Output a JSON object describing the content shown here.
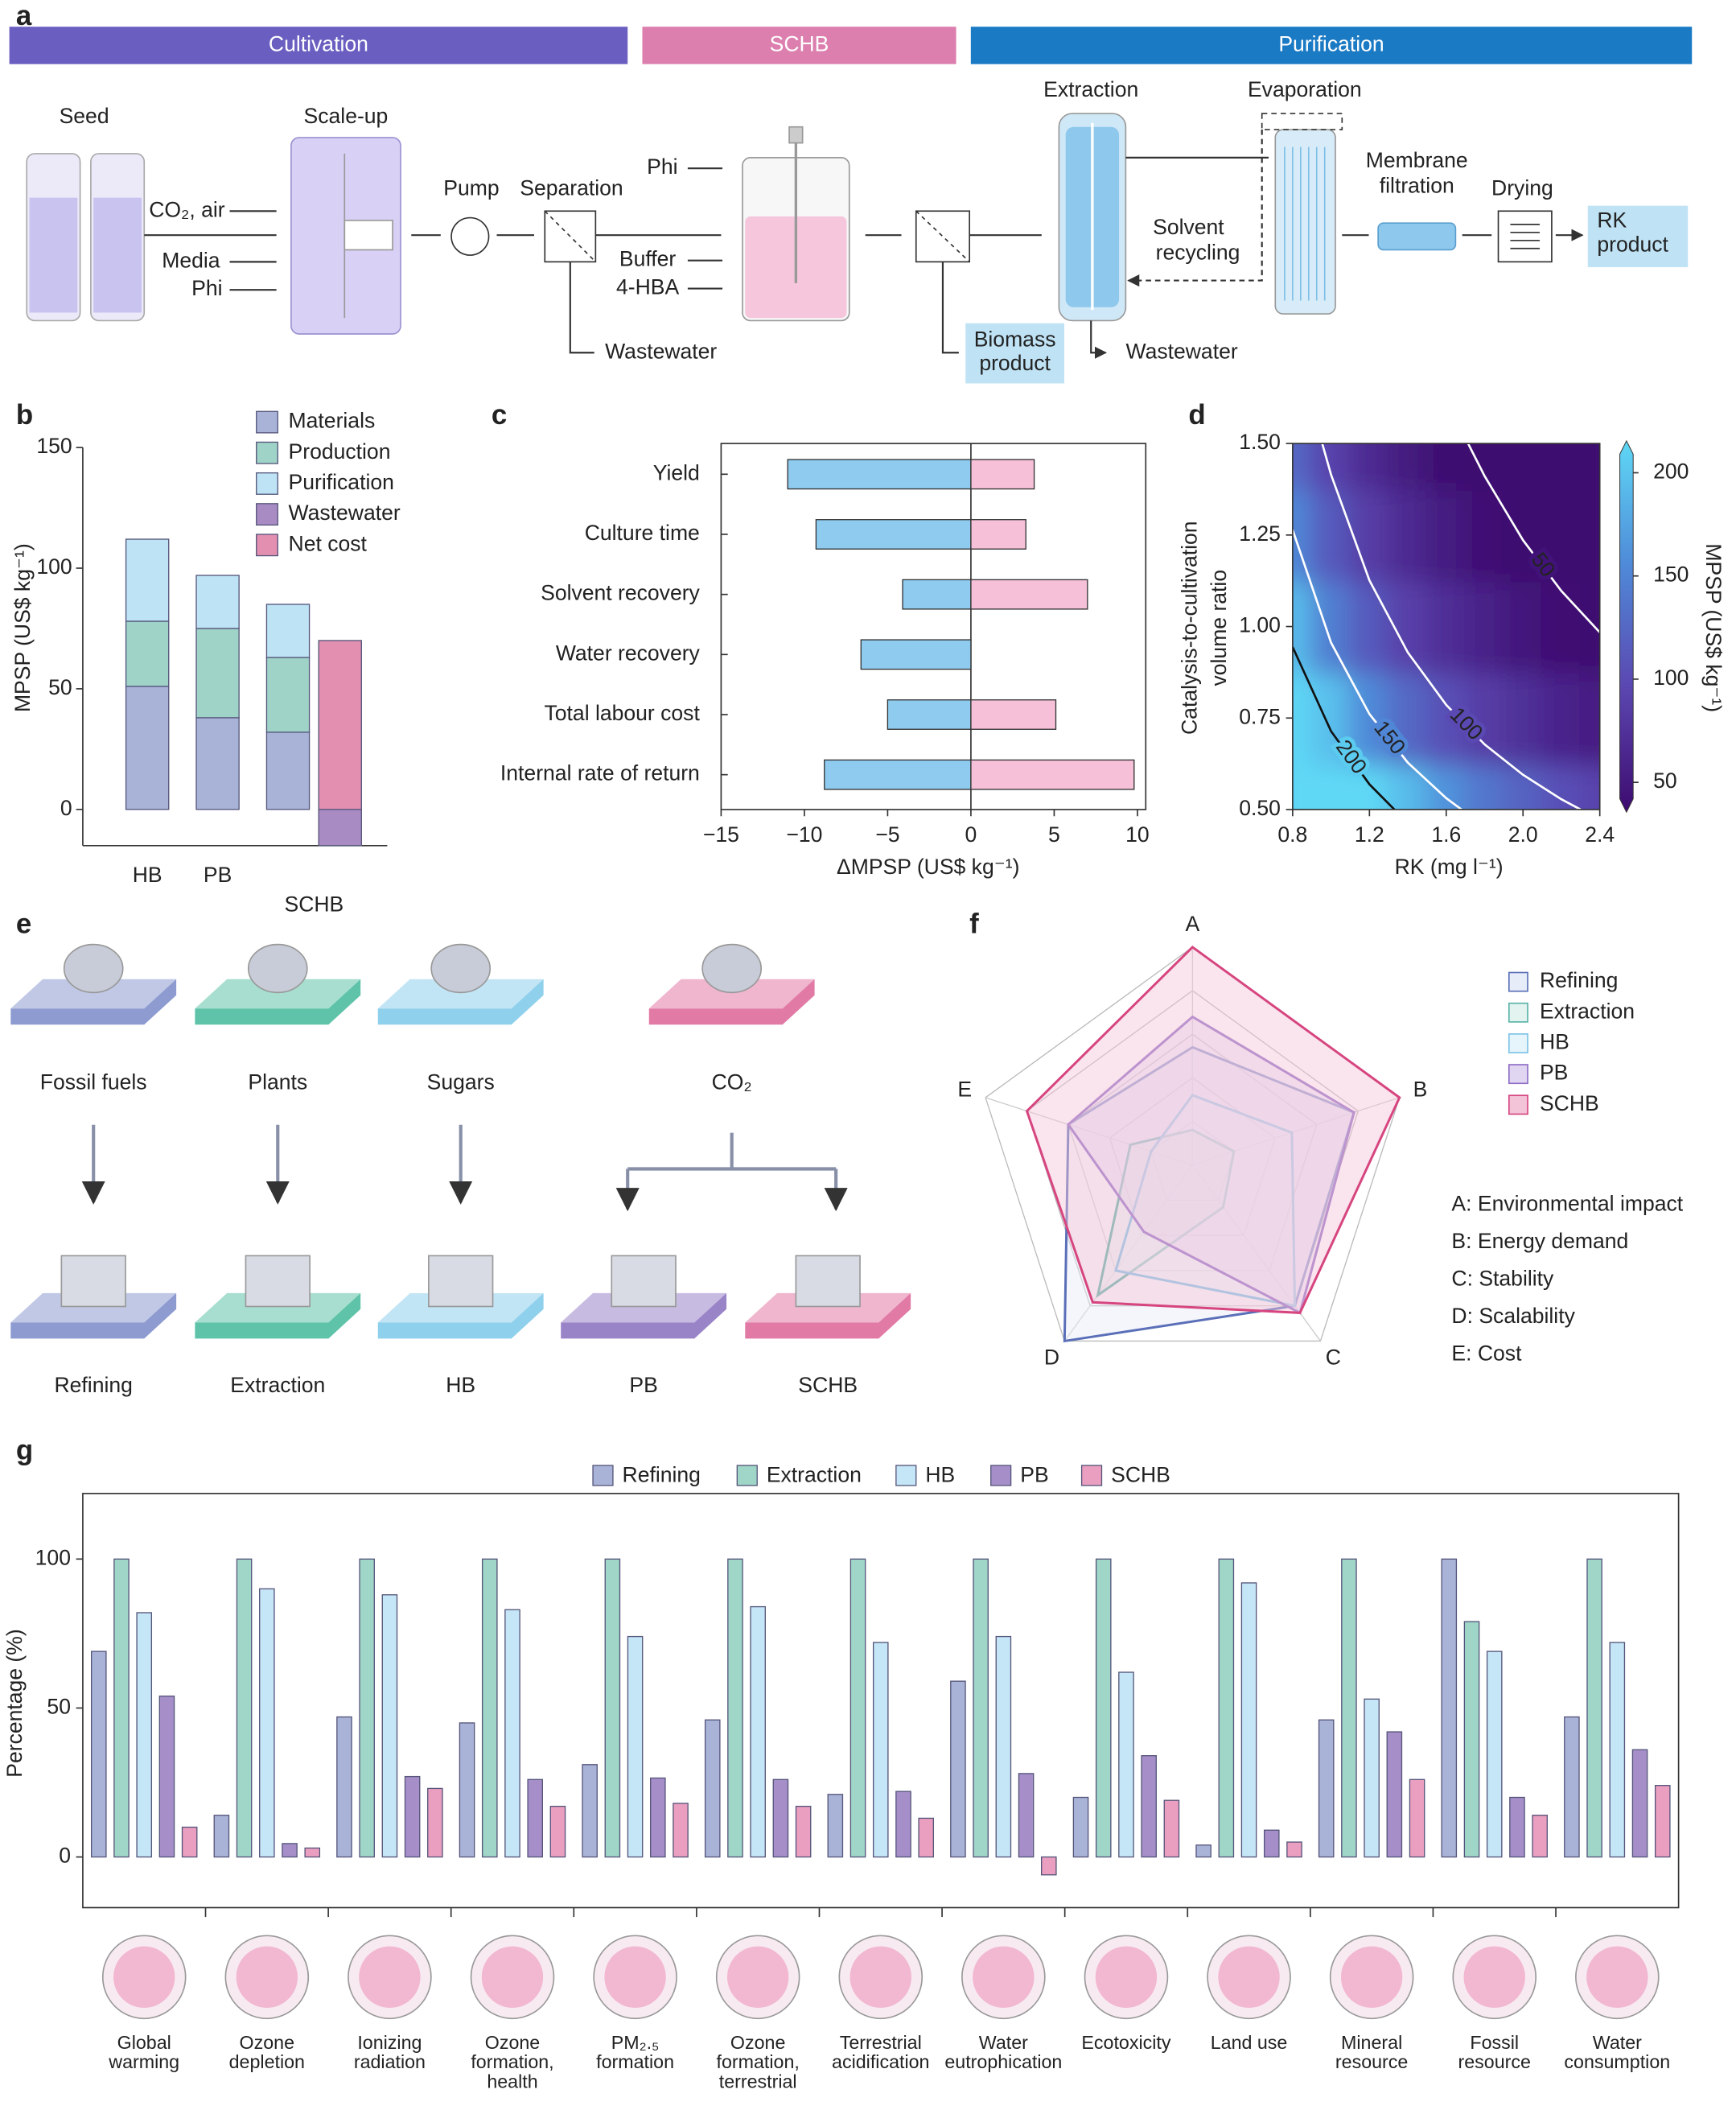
{
  "panel_labels": [
    "a",
    "b",
    "c",
    "d",
    "e",
    "f",
    "g"
  ],
  "diagram_a": {
    "stages": [
      {
        "name": "Cultivation",
        "color": "#6a5fc1"
      },
      {
        "name": "SCHB",
        "color": "#dc7fae"
      },
      {
        "name": "Purification",
        "color": "#1a7ac4"
      }
    ],
    "labels": {
      "seed": "Seed",
      "scale_up": "Scale-up",
      "co2": "CO₂, air",
      "media": "Media",
      "phi1": "Phi",
      "pump": "Pump",
      "separation": "Separation",
      "wastewater1": "Wastewater",
      "phi2": "Phi",
      "buffer": "Buffer",
      "hba": "4-HBA",
      "biomass": [
        "Biomass",
        "product"
      ],
      "extraction": "Extraction",
      "evaporation": "Evaporation",
      "solvent": [
        "Solvent",
        "recycling"
      ],
      "wastewater2": "Wastewater",
      "membrane": [
        "Membrane",
        "filtration"
      ],
      "drying": "Drying",
      "rk": [
        "RK",
        "product"
      ]
    }
  },
  "diagram_e": {
    "sources": [
      {
        "label": "Fossil fuels",
        "color": "#8d9bd0"
      },
      {
        "label": "Plants",
        "color": "#5ec3a8"
      },
      {
        "label": "Sugars",
        "color": "#8fd0ec"
      },
      {
        "label": "CO₂",
        "color": "#e27aa6"
      }
    ],
    "products": [
      {
        "label": "Refining",
        "color": "#8d9bd0"
      },
      {
        "label": "Extraction",
        "color": "#5ec3a8"
      },
      {
        "label": "HB",
        "color": "#8fd0ec"
      },
      {
        "label": "PB",
        "color": "#9a84c8"
      },
      {
        "label": "SCHB",
        "color": "#e27aa6"
      }
    ]
  },
  "chart_data": [
    {
      "type": "bar",
      "stacked": true,
      "ylabel": "MPSP (US$ kg⁻¹)",
      "categories": [
        "HB",
        "PB",
        "SCHB"
      ],
      "ylim": [
        -15,
        150
      ],
      "yticks": [
        0,
        50,
        100,
        150
      ],
      "legend": "top-right",
      "series": [
        {
          "name": "Materials",
          "color": "#a9b3d8",
          "values": [
            51,
            38,
            32
          ]
        },
        {
          "name": "Production",
          "color": "#9fd3c7",
          "values": [
            27,
            37,
            31
          ]
        },
        {
          "name": "Purification",
          "color": "#bde3f5",
          "values": [
            34,
            22,
            22
          ]
        },
        {
          "name": "Wastewater",
          "color": "#a98bc4",
          "values": [
            null,
            null,
            -15
          ]
        },
        {
          "name": "Net cost",
          "color": "#e28fb0",
          "values": [
            null,
            null,
            70
          ]
        }
      ]
    },
    {
      "type": "bar",
      "orientation": "horizontal",
      "xlabel": "ΔMPSP (US$ kg⁻¹)",
      "categories": [
        "Yield",
        "Culture time",
        "Solvent recovery",
        "Water recovery",
        "Total labour cost",
        "Internal rate of return"
      ],
      "xlim": [
        -15,
        10.5
      ],
      "xticks": [
        {
          "value": -15,
          "label": "−15"
        },
        {
          "value": -10,
          "label": "−10"
        },
        {
          "value": -5,
          "label": "−5"
        },
        0,
        5,
        10
      ],
      "series": [
        {
          "color": "#8ecbef",
          "values": [
            -11,
            -9.3,
            -4.1,
            -6.6,
            -5,
            -8.8
          ]
        },
        {
          "color": "#f6c0d8",
          "values": [
            3.8,
            3.3,
            7,
            null,
            5.1,
            9.8
          ]
        }
      ]
    },
    {
      "type": "contour",
      "xlabel": "RK (mg l⁻¹)",
      "ylabel": [
        "Catalysis-to-cultivation",
        "volume ratio"
      ],
      "xlim": [
        0.8,
        2.4
      ],
      "xticks": [
        0.8,
        1.2,
        1.6,
        {
          "value": 2.0,
          "label": "2.0"
        },
        2.4
      ],
      "ylim": [
        0.5,
        1.5
      ],
      "yticks": [
        {
          "value": 0.5,
          "label": "0.50"
        },
        0.75,
        {
          "value": 1.0,
          "label": "1.00"
        },
        1.25,
        {
          "value": 1.5,
          "label": "1.50"
        }
      ],
      "grid_x": [
        0.8,
        1.0,
        1.2,
        1.4,
        1.6,
        1.8,
        2.0,
        2.2,
        2.4
      ],
      "grid_y": [
        0.5,
        0.75,
        1.0,
        1.25,
        1.5
      ],
      "z": [
        [
          358,
          279,
          226,
          188,
          160,
          138,
          121,
          106,
          94
        ],
        [
          248,
          191,
          153,
          126,
          105,
          89,
          77,
          66,
          58
        ],
        [
          189,
          144,
          114,
          92,
          76,
          63,
          53,
          45,
          38
        ],
        [
          152,
          114,
          89,
          71,
          57,
          47,
          38,
          31,
          26
        ],
        [
          126,
          94,
          72,
          56,
          44,
          35,
          28,
          22,
          17
        ]
      ],
      "zlabel": "MPSP (US$ kg⁻¹)",
      "zlim": [
        42,
        209
      ],
      "zticks": [
        50,
        100,
        150,
        200
      ],
      "colormap": [
        "#3d0b6f",
        "#5b46b0",
        "#4f8ad8",
        "#5fd8f5"
      ],
      "contours": [
        {
          "level": 200,
          "color": "#111111",
          "x": [
            0.8,
            1.0,
            1.2,
            1.33
          ],
          "y": [
            0.944,
            0.714,
            0.569,
            0.5
          ]
        },
        {
          "level": 150,
          "color": "#ffffff",
          "x": [
            0.8,
            1.0,
            1.2,
            1.4,
            1.6,
            1.68
          ],
          "y": [
            1.264,
            0.956,
            0.761,
            0.628,
            0.531,
            0.5
          ]
        },
        {
          "level": 100,
          "color": "#ffffff",
          "x": [
            0.954,
            1.0,
            1.2,
            1.4,
            1.6,
            1.8,
            2.0,
            2.2,
            2.3
          ],
          "y": [
            1.5,
            1.415,
            1.126,
            0.929,
            0.786,
            0.678,
            0.595,
            0.528,
            0.5
          ]
        },
        {
          "level": 50,
          "color": "#ffffff",
          "x": [
            1.714,
            1.8,
            2.0,
            2.2,
            2.4
          ],
          "y": [
            1.5,
            1.411,
            1.236,
            1.097,
            0.984
          ]
        }
      ]
    },
    {
      "type": "radar",
      "axes": [
        "A",
        "B",
        "C",
        "D",
        "E"
      ],
      "rlim": [
        0,
        5
      ],
      "rticks": [
        1,
        2,
        3,
        4,
        5
      ],
      "legend": "top-right",
      "axis_notes": [
        "A: Environmental impact",
        "B: Energy demand",
        "C: Stability",
        "D: Scalability",
        "E: Cost"
      ],
      "series": [
        {
          "name": "Refining",
          "color": "#5a6fb8",
          "fill": "#e6ecf8",
          "values": [
            2.7,
            3.9,
            4.0,
            5,
            3.0
          ]
        },
        {
          "name": "Extraction",
          "color": "#5ab3a6",
          "fill": "#e3f4f0",
          "values": [
            0.8,
            1.0,
            1.2,
            3.7,
            1.5
          ]
        },
        {
          "name": "HB",
          "color": "#7cc3e6",
          "fill": "#e6f4fb",
          "values": [
            1.6,
            2.4,
            4.0,
            3.0,
            1.0
          ]
        },
        {
          "name": "PB",
          "color": "#8e6cc6",
          "fill": "#e1d6f2",
          "values": [
            3.4,
            3.9,
            4.2,
            1.9,
            3.0
          ]
        },
        {
          "name": "SCHB",
          "color": "#d6457f",
          "fill": "#f3c3d8",
          "values": [
            5,
            5,
            4.2,
            3.9,
            4.0
          ]
        }
      ]
    },
    {
      "type": "bar",
      "grouped": true,
      "ylabel": "Percentage (%)",
      "legend": "top",
      "categories": [
        "Global\nwarming",
        "Ozone\ndepletion",
        "Ionizing\nradiation",
        "Ozone\nformation,\nhealth",
        "PM₂.₅\nformation",
        "Ozone\nformation,\nterrestrial",
        "Terrestrial\nacidification",
        "Water\neutrophication",
        "Ecotoxicity",
        "Land use",
        "Mineral\nresource",
        "Fossil\nresource",
        "Water\nconsumption"
      ],
      "ylim": [
        -17,
        122
      ],
      "yticks": [
        0,
        50,
        100
      ],
      "series": [
        {
          "name": "Refining",
          "color": "#a9b3d8",
          "values": [
            69,
            14,
            47,
            45,
            31,
            46,
            21,
            59,
            20,
            4,
            46,
            100,
            47
          ]
        },
        {
          "name": "Extraction",
          "color": "#9fd6c8",
          "values": [
            100,
            100,
            100,
            100,
            100,
            100,
            100,
            100,
            100,
            100,
            100,
            79,
            100
          ]
        },
        {
          "name": "HB",
          "color": "#c5e6f7",
          "values": [
            82,
            90,
            88,
            83,
            74,
            84,
            72,
            74,
            62,
            92,
            53,
            69,
            72
          ]
        },
        {
          "name": "PB",
          "color": "#a68fc9",
          "values": [
            54,
            4.5,
            27,
            26,
            26.5,
            26,
            22,
            28,
            34,
            9,
            42,
            20,
            36
          ]
        },
        {
          "name": "SCHB",
          "color": "#eb9fc0",
          "values": [
            10,
            3,
            23,
            17,
            18,
            17,
            13,
            -6,
            19,
            5,
            26,
            14,
            24
          ]
        }
      ]
    }
  ]
}
